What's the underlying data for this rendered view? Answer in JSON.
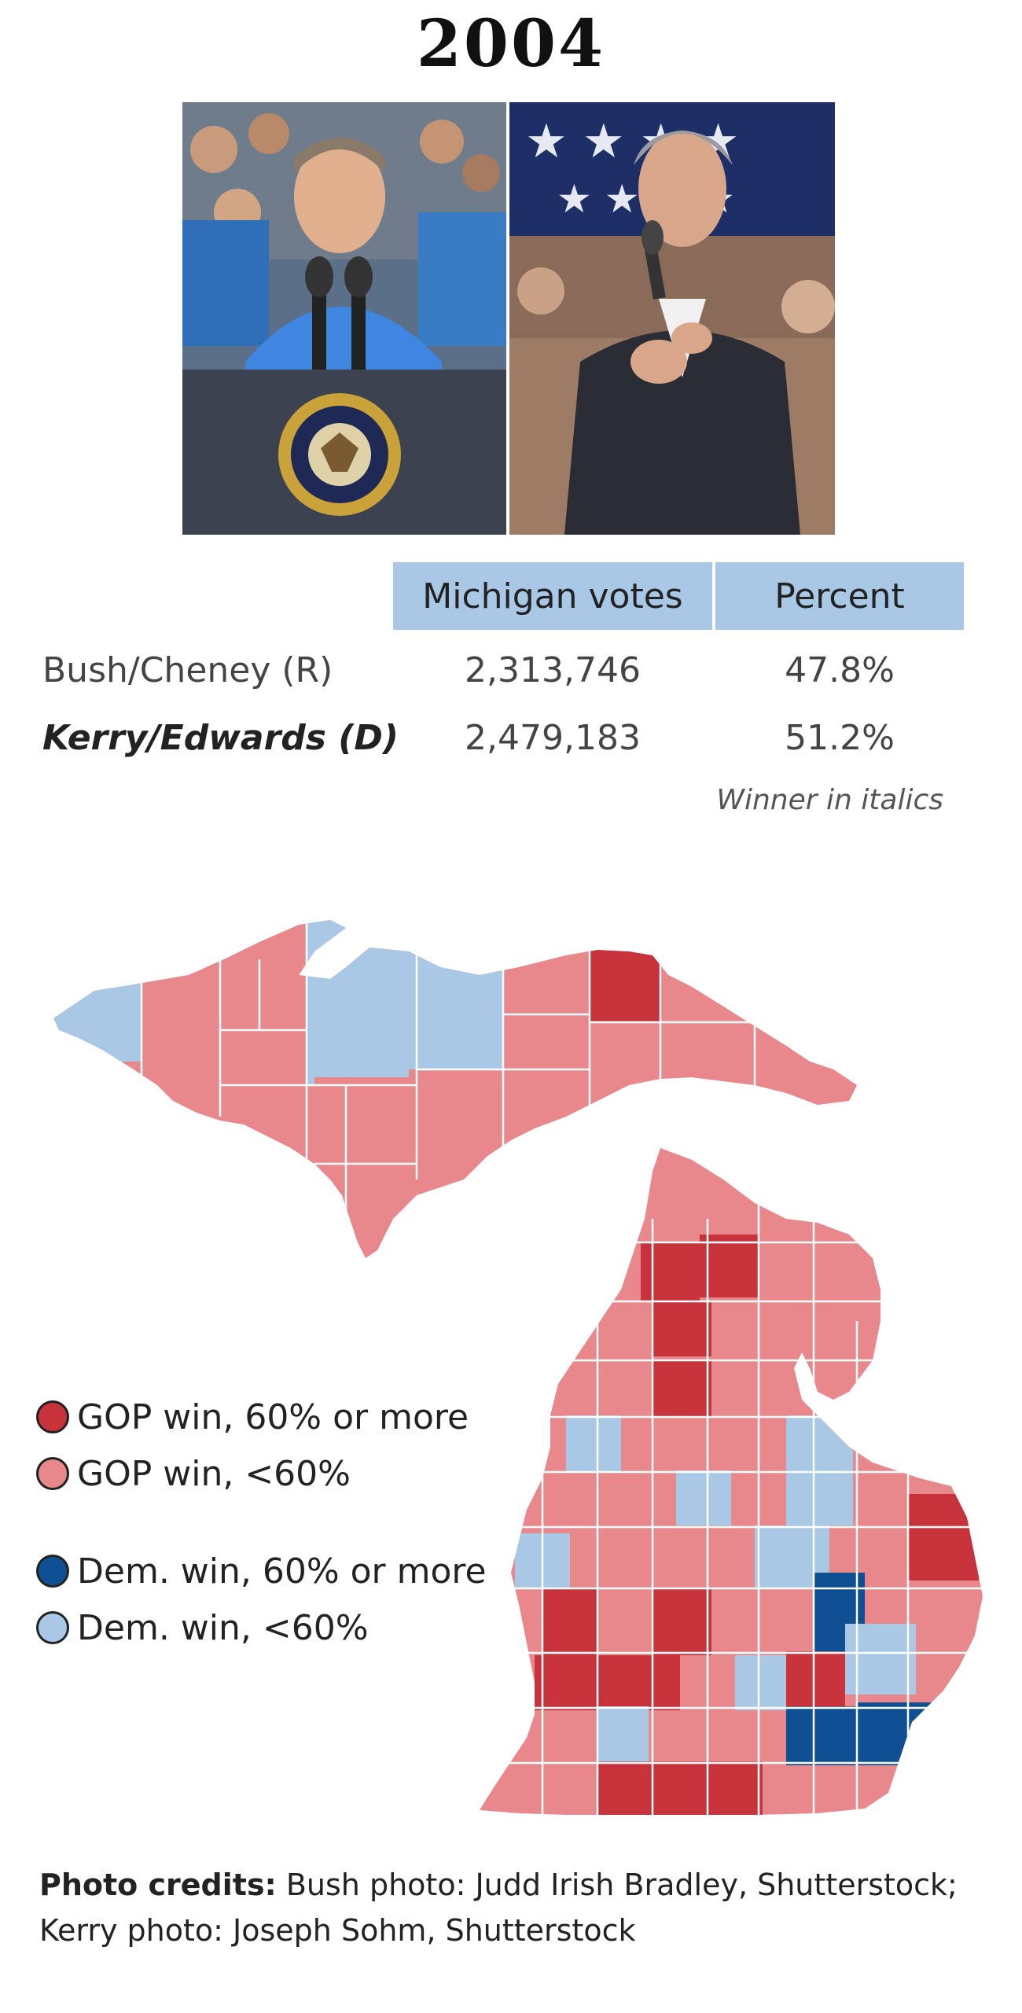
{
  "title": "2004",
  "table": {
    "headers": {
      "votes": "Michigan votes",
      "percent": "Percent"
    },
    "rows": [
      {
        "candidate": "Bush/Cheney (R)",
        "votes": "2,313,746",
        "percent": "47.8%",
        "winner": false
      },
      {
        "candidate": "Kerry/Edwards (D)",
        "votes": "2,479,183",
        "percent": "51.2%",
        "winner": true
      }
    ],
    "note": "Winner in italics"
  },
  "legend": [
    {
      "label": "GOP win, 60% or more",
      "color": "#c8323a"
    },
    {
      "label": "GOP win, <60%",
      "color": "#e8888c"
    },
    {
      "label": "Dem. win, 60% or more",
      "color": "#0f4f94"
    },
    {
      "label": "Dem. win, <60%",
      "color": "#a9c8e6"
    }
  ],
  "map_colors": {
    "gop_strong": "#c8323a",
    "gop_lean": "#e8888c",
    "dem_strong": "#0f4f94",
    "dem_lean": "#a9c8e6",
    "borders": "#ffffff"
  },
  "credits": {
    "label": "Photo credits:",
    "line1": "Bush photo: Judd Irish Bradley, Shutterstock;",
    "line2": "Kerry photo: Joseph Sohm, Shutterstock"
  }
}
